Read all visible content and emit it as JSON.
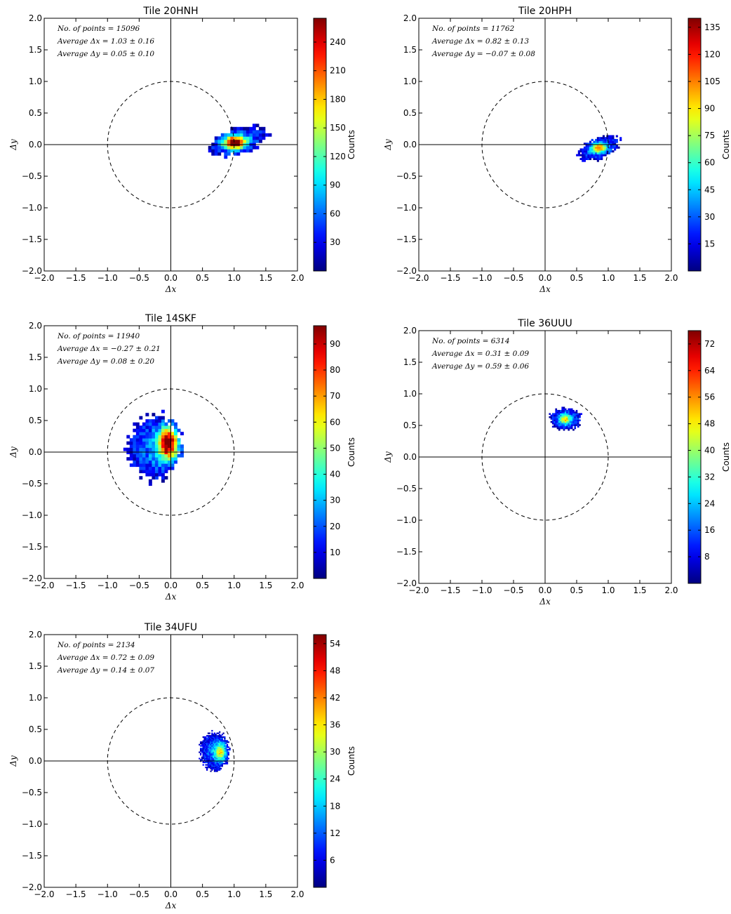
{
  "figure": {
    "colormap": "jet",
    "colorbar_label": "Counts",
    "unit_circle": {
      "radius": 1.0,
      "style": "dashed"
    }
  },
  "chart_data": [
    {
      "type": "heatmap",
      "title": "Tile 20HNH",
      "xlabel": "Δx",
      "ylabel": "Δy",
      "xlim": [
        -2.0,
        2.0
      ],
      "ylim": [
        -2.0,
        2.0
      ],
      "xticks": [
        "−2.0",
        "−1.5",
        "−1.0",
        "−0.5",
        "0.0",
        "0.5",
        "1.0",
        "1.5",
        "2.0"
      ],
      "yticks": [
        "−2.0",
        "−1.5",
        "−1.0",
        "−0.5",
        "0.0",
        "0.5",
        "1.0",
        "1.5",
        "2.0"
      ],
      "annotations": [
        "No. of points = 15096",
        "Average Δx = 1.03 ± 0.16",
        "Average Δy = 0.05 ± 0.10"
      ],
      "n_points": 15096,
      "mean_dx": 1.03,
      "std_dx": 0.16,
      "mean_dy": 0.05,
      "std_dy": 0.1,
      "cmax": 265,
      "colorbar_ticks": [
        30,
        60,
        90,
        120,
        150,
        180,
        210,
        240
      ],
      "blob": {
        "cx": 1.05,
        "cy": 0.03,
        "rx": 0.46,
        "ry": 0.2,
        "rot": 0.28,
        "peak": [
          0.98,
          0.01
        ],
        "peak_rel": 1.0,
        "cell": 0.05
      }
    },
    {
      "type": "heatmap",
      "title": "Tile 20HPH",
      "xlabel": "Δx",
      "ylabel": "Δy",
      "xlim": [
        -2.0,
        2.0
      ],
      "ylim": [
        -2.0,
        2.0
      ],
      "xticks": [
        "−2.0",
        "−1.5",
        "−1.0",
        "−0.5",
        "0.0",
        "0.5",
        "1.0",
        "1.5",
        "2.0"
      ],
      "yticks": [
        "−2.0",
        "−1.5",
        "−1.0",
        "−0.5",
        "0.0",
        "0.5",
        "1.0",
        "1.5",
        "2.0"
      ],
      "annotations": [
        "No. of points = 11762",
        "Average Δx = 0.82 ± 0.13",
        "Average Δy = −0.07 ± 0.08"
      ],
      "n_points": 11762,
      "mean_dx": 0.82,
      "std_dx": 0.13,
      "mean_dy": -0.07,
      "std_dy": 0.08,
      "cmax": 140,
      "colorbar_ticks": [
        15,
        30,
        45,
        60,
        75,
        90,
        105,
        120,
        135
      ],
      "blob": {
        "cx": 0.84,
        "cy": -0.07,
        "rx": 0.34,
        "ry": 0.16,
        "rot": 0.38,
        "peak": [
          0.84,
          -0.06
        ],
        "peak_rel": 0.55,
        "cell": 0.03
      }
    },
    {
      "type": "heatmap",
      "title": "Tile 14SKF",
      "xlabel": "Δx",
      "ylabel": "Δy",
      "xlim": [
        -2.0,
        2.0
      ],
      "ylim": [
        -2.0,
        2.0
      ],
      "xticks": [
        "−2.0",
        "−1.5",
        "−1.0",
        "−0.5",
        "0.0",
        "0.5",
        "1.0",
        "1.5",
        "2.0"
      ],
      "yticks": [
        "−2.0",
        "−1.5",
        "−1.0",
        "−0.5",
        "0.0",
        "0.5",
        "1.0",
        "1.5",
        "2.0"
      ],
      "annotations": [
        "No. of points = 11940",
        "Average Δx = −0.27 ± 0.21",
        "Average Δy = 0.08 ± 0.20"
      ],
      "n_points": 11940,
      "mean_dx": -0.27,
      "std_dx": 0.21,
      "mean_dy": 0.08,
      "std_dy": 0.2,
      "cmax": 97,
      "colorbar_ticks": [
        10,
        20,
        30,
        40,
        50,
        60,
        70,
        80,
        90
      ],
      "blob": {
        "cx": -0.28,
        "cy": 0.04,
        "rx": 0.42,
        "ry": 0.52,
        "rot": 0.0,
        "peak": [
          -0.06,
          0.12
        ],
        "peak_rel": 1.0,
        "cell": 0.05
      }
    },
    {
      "type": "heatmap",
      "title": "Tile 36UUU",
      "xlabel": "Δx",
      "ylabel": "Δy",
      "xlim": [
        -2.0,
        2.0
      ],
      "ylim": [
        -2.0,
        2.0
      ],
      "xticks": [
        "−2.0",
        "−1.5",
        "−1.0",
        "−0.5",
        "0.0",
        "0.5",
        "1.0",
        "1.5",
        "2.0"
      ],
      "yticks": [
        "−2.0",
        "−1.5",
        "−1.0",
        "−0.5",
        "0.0",
        "0.5",
        "1.0",
        "1.5",
        "2.0"
      ],
      "annotations": [
        "No. of points = 6314",
        "Average Δx = 0.31 ± 0.09",
        "Average Δy = 0.59 ± 0.06"
      ],
      "n_points": 6314,
      "mean_dx": 0.31,
      "std_dx": 0.09,
      "mean_dy": 0.59,
      "std_dy": 0.06,
      "cmax": 76,
      "colorbar_ticks": [
        8,
        16,
        24,
        32,
        40,
        48,
        56,
        64,
        72
      ],
      "blob": {
        "cx": 0.31,
        "cy": 0.59,
        "rx": 0.25,
        "ry": 0.17,
        "rot": 0.0,
        "peak": [
          0.3,
          0.59
        ],
        "peak_rel": 0.45,
        "cell": 0.025
      }
    },
    {
      "type": "heatmap",
      "title": "Tile 34UFU",
      "xlabel": "Δx",
      "ylabel": "Δy",
      "xlim": [
        -2.0,
        2.0
      ],
      "ylim": [
        -2.0,
        2.0
      ],
      "xticks": [
        "−2.0",
        "−1.5",
        "−1.0",
        "−0.5",
        "0.0",
        "0.5",
        "1.0",
        "1.5",
        "2.0"
      ],
      "yticks": [
        "−2.0",
        "−1.5",
        "−1.0",
        "−0.5",
        "0.0",
        "0.5",
        "1.0",
        "1.5",
        "2.0"
      ],
      "annotations": [
        "No. of points = 2134",
        "Average Δx = 0.72 ± 0.09",
        "Average Δy = 0.14 ± 0.07"
      ],
      "n_points": 2134,
      "mean_dx": 0.72,
      "std_dx": 0.09,
      "mean_dy": 0.14,
      "std_dy": 0.07,
      "cmax": 56,
      "colorbar_ticks": [
        6,
        12,
        18,
        24,
        30,
        36,
        42,
        48,
        54
      ],
      "blob": {
        "cx": 0.68,
        "cy": 0.14,
        "rx": 0.22,
        "ry": 0.3,
        "rot": 0.0,
        "peak": [
          0.78,
          0.13
        ],
        "peak_rel": 0.5,
        "cell": 0.02
      }
    }
  ]
}
